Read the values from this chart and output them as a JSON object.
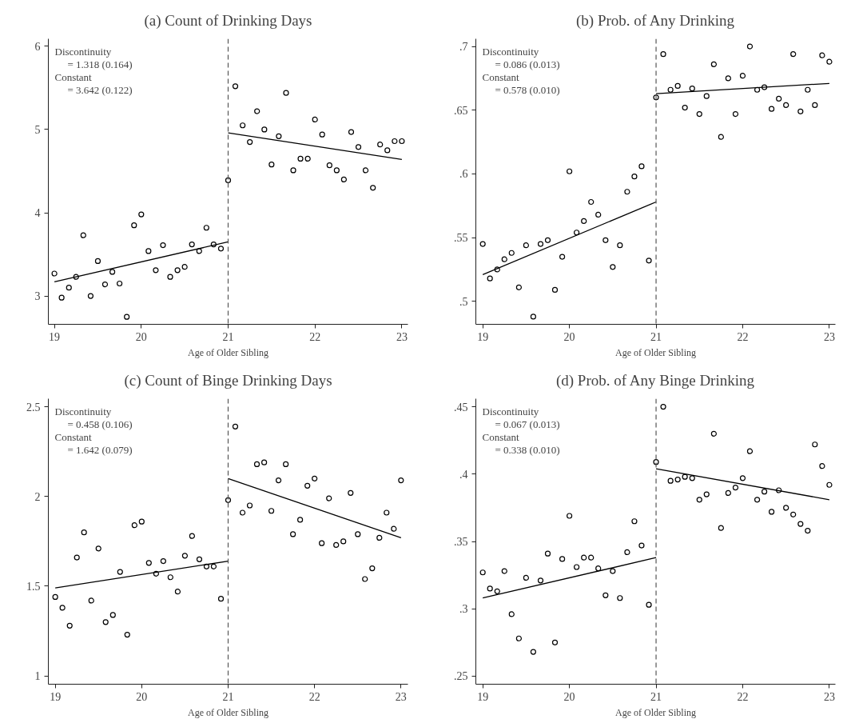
{
  "chart_data": [
    {
      "type": "scatter",
      "title": "(a) Count of Drinking Days",
      "xlabel": "Age of Older Sibling",
      "grid": false,
      "annotations": [
        "Discontinuity",
        "= 1.318 (0.164)",
        "Constant",
        "= 3.642 (0.122)"
      ],
      "x": [
        19,
        19.083,
        19.167,
        19.25,
        19.333,
        19.417,
        19.5,
        19.583,
        19.667,
        19.75,
        19.833,
        19.917,
        20,
        20.083,
        20.167,
        20.25,
        20.333,
        20.417,
        20.5,
        20.583,
        20.667,
        20.75,
        20.833,
        20.917,
        21,
        21.083,
        21.167,
        21.25,
        21.333,
        21.417,
        21.5,
        21.583,
        21.667,
        21.75,
        21.833,
        21.917,
        22,
        22.083,
        22.167,
        22.25,
        22.333,
        22.417,
        22.5,
        22.583,
        22.667,
        22.75,
        22.833,
        22.917,
        23
      ],
      "series": [
        {
          "marker": "circle",
          "color": "#000000",
          "values": [
            3.27,
            2.98,
            3.1,
            3.23,
            3.73,
            3.0,
            3.42,
            3.14,
            3.29,
            3.15,
            2.75,
            3.85,
            3.98,
            3.54,
            3.31,
            3.61,
            3.23,
            3.31,
            3.35,
            3.62,
            3.54,
            3.82,
            3.62,
            3.57,
            4.39,
            5.52,
            5.05,
            4.85,
            5.22,
            5.0,
            4.58,
            4.92,
            5.44,
            4.51,
            4.65,
            4.65,
            5.12,
            4.94,
            4.57,
            4.51,
            4.4,
            4.97,
            4.79,
            4.51,
            4.3,
            4.82,
            4.75,
            4.86,
            4.86
          ]
        },
        {
          "type": "line",
          "color": "#000000",
          "line_style": "solid",
          "x": [
            19,
            21
          ],
          "values": [
            3.17,
            3.65
          ]
        },
        {
          "type": "line",
          "color": "#000000",
          "line_style": "solid",
          "x": [
            21,
            23
          ],
          "values": [
            4.96,
            4.64
          ]
        }
      ],
      "ref_lines": [
        {
          "axis": "x",
          "value": 21,
          "color": "#555555",
          "line_style": "dashed"
        }
      ],
      "xlim": [
        18.93,
        23.07
      ],
      "xticks": [
        19,
        20,
        21,
        22,
        23
      ],
      "ylim": [
        2.66,
        6.09
      ],
      "yticks": [
        3,
        4,
        5,
        6
      ]
    },
    {
      "type": "scatter",
      "title": "(b) Prob. of Any Drinking",
      "xlabel": "Age of Older Sibling",
      "grid": false,
      "annotations": [
        "Discontinuity",
        "= 0.086 (0.013)",
        "Constant",
        "= 0.578 (0.010)"
      ],
      "x": [
        19,
        19.083,
        19.167,
        19.25,
        19.333,
        19.417,
        19.5,
        19.583,
        19.667,
        19.75,
        19.833,
        19.917,
        20,
        20.083,
        20.167,
        20.25,
        20.333,
        20.417,
        20.5,
        20.583,
        20.667,
        20.75,
        20.833,
        20.917,
        21,
        21.083,
        21.167,
        21.25,
        21.333,
        21.417,
        21.5,
        21.583,
        21.667,
        21.75,
        21.833,
        21.917,
        22,
        22.083,
        22.167,
        22.25,
        22.333,
        22.417,
        22.5,
        22.583,
        22.667,
        22.75,
        22.833,
        22.917,
        23
      ],
      "series": [
        {
          "marker": "circle",
          "color": "#000000",
          "values": [
            0.545,
            0.518,
            0.525,
            0.533,
            0.538,
            0.511,
            0.544,
            0.488,
            0.545,
            0.548,
            0.509,
            0.535,
            0.602,
            0.554,
            0.563,
            0.578,
            0.568,
            0.548,
            0.527,
            0.544,
            0.586,
            0.598,
            0.606,
            0.532,
            0.66,
            0.694,
            0.666,
            0.669,
            0.652,
            0.667,
            0.647,
            0.661,
            0.686,
            0.629,
            0.675,
            0.647,
            0.677,
            0.7,
            0.666,
            0.668,
            0.651,
            0.659,
            0.654,
            0.694,
            0.649,
            0.666,
            0.654,
            0.693,
            0.688
          ]
        },
        {
          "type": "line",
          "color": "#000000",
          "line_style": "solid",
          "x": [
            19,
            21
          ],
          "values": [
            0.521,
            0.578
          ]
        },
        {
          "type": "line",
          "color": "#000000",
          "line_style": "solid",
          "x": [
            21,
            23
          ],
          "values": [
            0.663,
            0.671
          ]
        }
      ],
      "ref_lines": [
        {
          "axis": "x",
          "value": 21,
          "color": "#555555",
          "line_style": "dashed"
        }
      ],
      "xlim": [
        18.92,
        23.07
      ],
      "xticks": [
        19,
        20,
        21,
        22,
        23
      ],
      "ylim": [
        0.482,
        0.706
      ],
      "yticks": [
        {
          "value": 0.5,
          "label": ".5"
        },
        {
          "value": 0.55,
          "label": ".55"
        },
        {
          "value": 0.6,
          "label": ".6"
        },
        {
          "value": 0.65,
          "label": ".65"
        },
        {
          "value": 0.7,
          "label": ".7"
        }
      ]
    },
    {
      "type": "scatter",
      "title": "(c) Count of Binge Drinking Days",
      "xlabel": "Age of Older Sibling",
      "grid": false,
      "annotations": [
        "Discontinuity",
        "= 0.458 (0.106)",
        "Constant",
        "= 1.642 (0.079)"
      ],
      "x": [
        19,
        19.083,
        19.167,
        19.25,
        19.333,
        19.417,
        19.5,
        19.583,
        19.667,
        19.75,
        19.833,
        19.917,
        20,
        20.083,
        20.167,
        20.25,
        20.333,
        20.417,
        20.5,
        20.583,
        20.667,
        20.75,
        20.833,
        20.917,
        21,
        21.083,
        21.167,
        21.25,
        21.333,
        21.417,
        21.5,
        21.583,
        21.667,
        21.75,
        21.833,
        21.917,
        22,
        22.083,
        22.167,
        22.25,
        22.333,
        22.417,
        22.5,
        22.583,
        22.667,
        22.75,
        22.833,
        22.917,
        23
      ],
      "series": [
        {
          "marker": "circle",
          "color": "#000000",
          "values": [
            1.44,
            1.38,
            1.28,
            1.66,
            1.8,
            1.42,
            1.71,
            1.3,
            1.34,
            1.58,
            1.23,
            1.84,
            1.86,
            1.63,
            1.57,
            1.64,
            1.55,
            1.47,
            1.67,
            1.78,
            1.65,
            1.61,
            1.61,
            1.43,
            1.98,
            2.39,
            1.91,
            1.95,
            2.18,
            2.19,
            1.92,
            2.09,
            2.18,
            1.79,
            1.87,
            2.06,
            2.1,
            1.74,
            1.99,
            1.73,
            1.75,
            2.02,
            1.79,
            1.54,
            1.6,
            1.77,
            1.91,
            1.82,
            2.09
          ]
        },
        {
          "type": "line",
          "color": "#000000",
          "line_style": "solid",
          "x": [
            19,
            21
          ],
          "values": [
            1.49,
            1.64
          ]
        },
        {
          "type": "line",
          "color": "#000000",
          "line_style": "solid",
          "x": [
            21,
            23
          ],
          "values": [
            2.1,
            1.77
          ]
        }
      ],
      "ref_lines": [
        {
          "axis": "x",
          "value": 21,
          "color": "#555555",
          "line_style": "dashed"
        }
      ],
      "xlim": [
        18.92,
        23.08
      ],
      "xticks": [
        19,
        20,
        21,
        22,
        23
      ],
      "ylim": [
        0.954,
        2.545
      ],
      "yticks": [
        1,
        1.5,
        2,
        2.5
      ]
    },
    {
      "type": "scatter",
      "title": "(d) Prob. of Any Binge Drinking",
      "xlabel": "Age of Older Sibling",
      "grid": false,
      "annotations": [
        "Discontinuity",
        "= 0.067 (0.013)",
        "Constant",
        "= 0.338 (0.010)"
      ],
      "x": [
        19,
        19.083,
        19.167,
        19.25,
        19.333,
        19.417,
        19.5,
        19.583,
        19.667,
        19.75,
        19.833,
        19.917,
        20,
        20.083,
        20.167,
        20.25,
        20.333,
        20.417,
        20.5,
        20.583,
        20.667,
        20.75,
        20.833,
        20.917,
        21,
        21.083,
        21.167,
        21.25,
        21.333,
        21.417,
        21.5,
        21.583,
        21.667,
        21.75,
        21.833,
        21.917,
        22,
        22.083,
        22.167,
        22.25,
        22.333,
        22.417,
        22.5,
        22.583,
        22.667,
        22.75,
        22.833,
        22.917,
        23
      ],
      "series": [
        {
          "marker": "circle",
          "color": "#000000",
          "values": [
            0.327,
            0.315,
            0.313,
            0.328,
            0.296,
            0.278,
            0.323,
            0.268,
            0.321,
            0.341,
            0.275,
            0.337,
            0.369,
            0.331,
            0.338,
            0.338,
            0.33,
            0.31,
            0.328,
            0.308,
            0.342,
            0.365,
            0.347,
            0.303,
            0.409,
            0.45,
            0.395,
            0.396,
            0.398,
            0.397,
            0.381,
            0.385,
            0.43,
            0.36,
            0.386,
            0.39,
            0.397,
            0.417,
            0.381,
            0.387,
            0.372,
            0.388,
            0.375,
            0.37,
            0.363,
            0.358,
            0.422,
            0.406,
            0.392
          ]
        },
        {
          "type": "line",
          "color": "#000000",
          "line_style": "solid",
          "x": [
            19,
            21
          ],
          "values": [
            0.308,
            0.338
          ]
        },
        {
          "type": "line",
          "color": "#000000",
          "line_style": "solid",
          "x": [
            21,
            23
          ],
          "values": [
            0.404,
            0.381
          ]
        }
      ],
      "ref_lines": [
        {
          "axis": "x",
          "value": 21,
          "color": "#555555",
          "line_style": "dashed"
        }
      ],
      "xlim": [
        18.92,
        23.07
      ],
      "xticks": [
        19,
        20,
        21,
        22,
        23
      ],
      "ylim": [
        0.244,
        0.456
      ],
      "yticks": [
        {
          "value": 0.25,
          "label": ".25"
        },
        {
          "value": 0.3,
          "label": ".3"
        },
        {
          "value": 0.35,
          "label": ".35"
        },
        {
          "value": 0.4,
          "label": ".4"
        },
        {
          "value": 0.45,
          "label": ".45"
        }
      ]
    }
  ]
}
